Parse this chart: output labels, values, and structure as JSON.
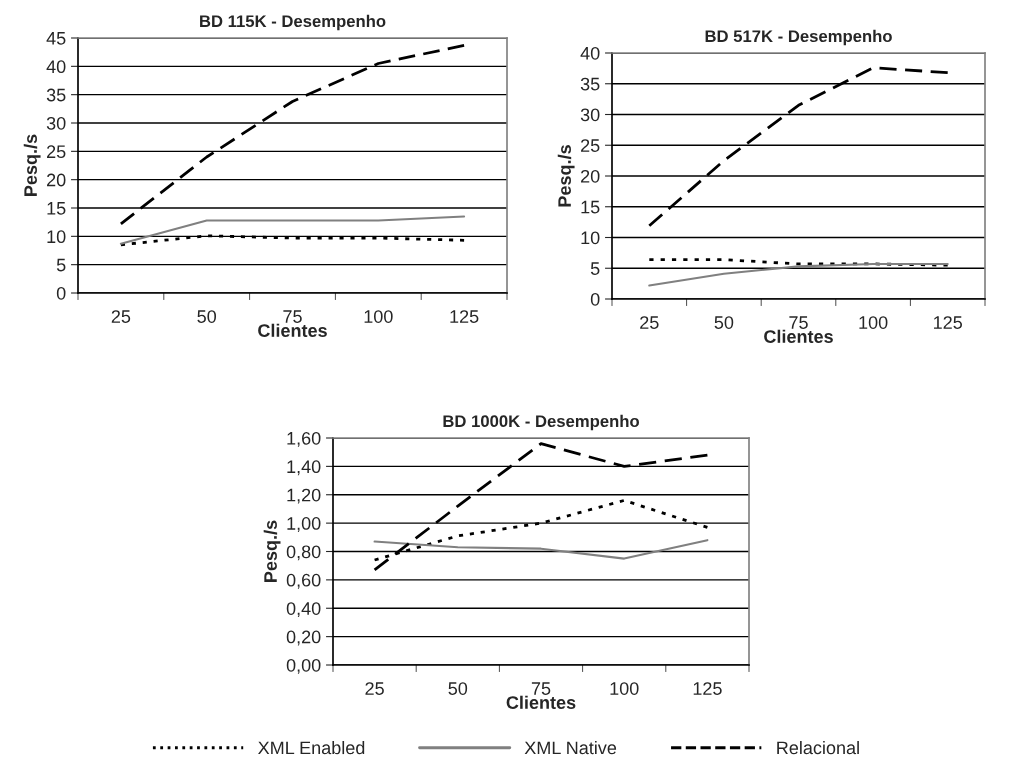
{
  "chart_data": [
    {
      "type": "line",
      "title": "BD 115K - Desempenho",
      "xlabel": "Clientes",
      "ylabel": "Pesq./s",
      "categories": [
        "25",
        "50",
        "75",
        "100",
        "125"
      ],
      "ylim": [
        0,
        45
      ],
      "yticks": [
        0,
        5,
        10,
        15,
        20,
        25,
        30,
        35,
        40,
        45
      ],
      "grid": "y",
      "marker": "none",
      "series": [
        {
          "color": "#000000",
          "line_style": "dotted",
          "values": [
            8.5,
            10.1,
            9.7,
            9.7,
            9.3
          ]
        },
        {
          "color": "#808080",
          "line_style": "solid",
          "values": [
            8.7,
            12.8,
            12.8,
            12.8,
            13.5
          ]
        },
        {
          "color": "#000000",
          "line_style": "dashed",
          "values": [
            12.2,
            24,
            33.8,
            40.5,
            43.7
          ]
        }
      ]
    },
    {
      "type": "line",
      "title": "BD 517K - Desempenho",
      "xlabel": "Clientes",
      "ylabel": "Pesq./s",
      "categories": [
        "25",
        "50",
        "75",
        "100",
        "125"
      ],
      "ylim": [
        0,
        40
      ],
      "yticks": [
        0,
        5,
        10,
        15,
        20,
        25,
        30,
        35,
        40
      ],
      "grid": "y",
      "marker": "none",
      "series": [
        {
          "color": "#000000",
          "line_style": "dotted",
          "values": [
            6.4,
            6.4,
            5.7,
            5.7,
            5.5
          ]
        },
        {
          "color": "#808080",
          "line_style": "solid",
          "values": [
            2.2,
            4.1,
            5.3,
            5.7,
            5.7
          ]
        },
        {
          "color": "#000000",
          "line_style": "dashed",
          "values": [
            11.9,
            22.5,
            31.5,
            37.6,
            36.8
          ]
        }
      ]
    },
    {
      "type": "line",
      "title": "BD 1000K - Desempenho",
      "xlabel": "Clientes",
      "ylabel": "Pesq./s",
      "categories": [
        "25",
        "50",
        "75",
        "100",
        "125"
      ],
      "ylim": [
        0,
        1.6
      ],
      "yticks": [
        {
          "value": 0,
          "label": "0,00"
        },
        {
          "value": 0.2,
          "label": "0,20"
        },
        {
          "value": 0.4,
          "label": "0,40"
        },
        {
          "value": 0.6,
          "label": "0,60"
        },
        {
          "value": 0.8,
          "label": "0,80"
        },
        {
          "value": 1.0,
          "label": "1,00"
        },
        {
          "value": 1.2,
          "label": "1,20"
        },
        {
          "value": 1.4,
          "label": "1,40"
        },
        {
          "value": 1.6,
          "label": "1,60"
        }
      ],
      "grid": "y",
      "marker": "none",
      "legend": "bottom",
      "series": [
        {
          "name": "XML Enabled",
          "color": "#000000",
          "line_style": "dotted",
          "values": [
            0.74,
            0.91,
            1.0,
            1.16,
            0.97
          ]
        },
        {
          "name": "XML Native",
          "color": "#808080",
          "line_style": "solid",
          "values": [
            0.87,
            0.83,
            0.82,
            0.75,
            0.88
          ]
        },
        {
          "name": "Relacional",
          "color": "#000000",
          "line_style": "dashed",
          "values": [
            0.67,
            1.12,
            1.56,
            1.4,
            1.48
          ]
        }
      ]
    }
  ]
}
